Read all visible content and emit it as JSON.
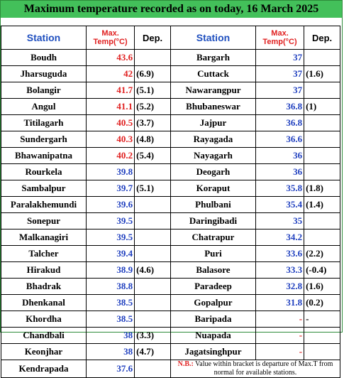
{
  "title": "Maximum temperature recorded as on today, 16 March 2025",
  "headers": {
    "station": "Station",
    "max_line1": "Max.",
    "max_line2": "Temp(°C)",
    "dep": "Dep."
  },
  "left": [
    {
      "station": "Boudh",
      "max": "43.6",
      "dep": "",
      "color": "red"
    },
    {
      "station": "Jharsuguda",
      "max": "42",
      "dep": "(6.9)",
      "color": "red"
    },
    {
      "station": "Bolangir",
      "max": "41.7",
      "dep": "(5.1)",
      "color": "red"
    },
    {
      "station": "Angul",
      "max": "41.1",
      "dep": "(5.2)",
      "color": "red"
    },
    {
      "station": "Titilagarh",
      "max": "40.5",
      "dep": "(3.7)",
      "color": "red"
    },
    {
      "station": "Sundergarh",
      "max": "40.3",
      "dep": "(4.8)",
      "color": "red"
    },
    {
      "station": "Bhawanipatna",
      "max": "40.2",
      "dep": "(5.4)",
      "color": "red"
    },
    {
      "station": "Rourkela",
      "max": "39.8",
      "dep": "",
      "color": "blue"
    },
    {
      "station": "Sambalpur",
      "max": "39.7",
      "dep": "(5.1)",
      "color": "blue"
    },
    {
      "station": "Paralakhemundi",
      "max": "39.6",
      "dep": "",
      "color": "blue"
    },
    {
      "station": "Sonepur",
      "max": "39.5",
      "dep": "",
      "color": "blue"
    },
    {
      "station": "Malkanagiri",
      "max": "39.5",
      "dep": "",
      "color": "blue"
    },
    {
      "station": "Talcher",
      "max": "39.4",
      "dep": "",
      "color": "blue"
    },
    {
      "station": "Hirakud",
      "max": "38.9",
      "dep": "(4.6)",
      "color": "blue"
    },
    {
      "station": "Bhadrak",
      "max": "38.8",
      "dep": "",
      "color": "blue"
    },
    {
      "station": "Dhenkanal",
      "max": "38.5",
      "dep": "",
      "color": "blue"
    },
    {
      "station": "Khordha",
      "max": "38.5",
      "dep": "",
      "color": "blue"
    },
    {
      "station": "Chandbali",
      "max": "38",
      "dep": "(3.3)",
      "color": "blue"
    },
    {
      "station": "Keonjhar",
      "max": "38",
      "dep": "(4.7)",
      "color": "blue"
    },
    {
      "station": "Kendrapada",
      "max": "37.6",
      "dep": "",
      "color": "blue"
    }
  ],
  "right": [
    {
      "station": "Bargarh",
      "max": "37",
      "dep": "",
      "color": "blue"
    },
    {
      "station": "Cuttack",
      "max": "37",
      "dep": "(1.6)",
      "color": "blue"
    },
    {
      "station": "Nawarangpur",
      "max": "37",
      "dep": "",
      "color": "blue"
    },
    {
      "station": "Bhubaneswar",
      "max": "36.8",
      "dep": "(1)",
      "color": "blue"
    },
    {
      "station": "Jajpur",
      "max": "36.8",
      "dep": "",
      "color": "blue"
    },
    {
      "station": "Rayagada",
      "max": "36.6",
      "dep": "",
      "color": "blue"
    },
    {
      "station": "Nayagarh",
      "max": "36",
      "dep": "",
      "color": "blue"
    },
    {
      "station": "Deogarh",
      "max": "36",
      "dep": "",
      "color": "blue"
    },
    {
      "station": "Koraput",
      "max": "35.8",
      "dep": "(1.8)",
      "color": "blue"
    },
    {
      "station": "Phulbani",
      "max": "35.4",
      "dep": "(1.4)",
      "color": "blue"
    },
    {
      "station": "Daringibadi",
      "max": "35",
      "dep": "",
      "color": "blue"
    },
    {
      "station": "Chatrapur",
      "max": "34.2",
      "dep": "",
      "color": "blue"
    },
    {
      "station": "Puri",
      "max": "33.6",
      "dep": "(2.2)",
      "color": "blue"
    },
    {
      "station": "Balasore",
      "max": "33.3",
      "dep": "(-0.4)",
      "color": "blue"
    },
    {
      "station": "Paradeep",
      "max": "32.8",
      "dep": "(1.6)",
      "color": "blue"
    },
    {
      "station": "Gopalpur",
      "max": "31.8",
      "dep": "(0.2)",
      "color": "blue"
    },
    {
      "station": "Baripada",
      "max": "-",
      "dep": "-",
      "color": "red"
    },
    {
      "station": "Nuapada",
      "max": "-",
      "dep": "",
      "color": "red"
    },
    {
      "station": "Jagatsinghpur",
      "max": "-",
      "dep": "",
      "color": "red"
    }
  ],
  "note": {
    "prefix": "N.B.:",
    "text": "Value within bracket is departure of Max.T from normal for available stations."
  },
  "colors": {
    "red": "#e02020",
    "blue": "#1f3fbf",
    "title_bg": "#43c05a"
  }
}
